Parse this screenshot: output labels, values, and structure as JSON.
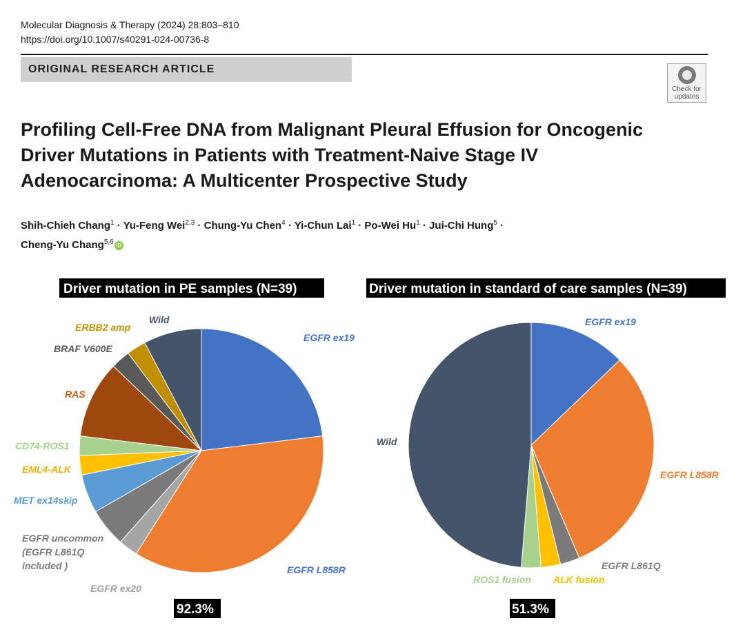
{
  "header": {
    "journal_line": "Molecular Diagnosis & Therapy (2024) 28:803–810",
    "doi": "https://doi.org/10.1007/s40291-024-00736-8",
    "article_type": "ORIGINAL RESEARCH ARTICLE",
    "check_updates": "Check for updates"
  },
  "paper": {
    "title": "Profiling Cell-Free DNA from Malignant Pleural Effusion for Oncogenic Driver Mutations in Patients with Treatment-Naive Stage IV Adenocarcinoma: A Multicenter Prospective Study",
    "authors": [
      {
        "name": "Shih-Chieh Chang",
        "aff": "1"
      },
      {
        "name": "Yu-Feng Wei",
        "aff": "2,3"
      },
      {
        "name": "Chung-Yu Chen",
        "aff": "4"
      },
      {
        "name": "Yi-Chun Lai",
        "aff": "1"
      },
      {
        "name": "Po-Wei Hu",
        "aff": "1"
      },
      {
        "name": "Jui-Chi Hung",
        "aff": "5"
      },
      {
        "name": "Cheng-Yu Chang",
        "aff": "5,6"
      }
    ],
    "orcid_icon": "orcid-icon"
  },
  "chart_data": [
    {
      "type": "pie",
      "title": "Driver mutation in PE samples (N=39)",
      "footer": "92.3%",
      "slices": [
        {
          "label": "EGFR ex19",
          "value": 9,
          "color": "#4472c4"
        },
        {
          "label": "EGFR L858R",
          "value": 14,
          "color": "#ed7d31"
        },
        {
          "label": "EGFR ex20",
          "value": 1,
          "color": "#a5a5a5"
        },
        {
          "label": "EGFR uncommon (EGFR L861Q included )",
          "value": 2,
          "color": "#7a7a7a"
        },
        {
          "label": "MET ex14skip",
          "value": 2,
          "color": "#5b9bd5"
        },
        {
          "label": "EML4-ALK",
          "value": 1,
          "color": "#ffc000"
        },
        {
          "label": "CD74-ROS1",
          "value": 1,
          "color": "#a9d18e"
        },
        {
          "label": "RAS",
          "value": 4,
          "color": "#9e480e"
        },
        {
          "label": "BRAF V600E",
          "value": 1,
          "color": "#595959"
        },
        {
          "label": "ERBB2 amp",
          "value": 1,
          "color": "#bf8f00"
        },
        {
          "label": "Wild",
          "value": 3,
          "color": "#44546a"
        }
      ]
    },
    {
      "type": "pie",
      "title": "Driver mutation in standard of care samples (N=39)",
      "footer": "51.3%",
      "slices": [
        {
          "label": "EGFR ex19",
          "value": 5,
          "color": "#4472c4"
        },
        {
          "label": "EGFR L858R",
          "value": 12,
          "color": "#ed7d31"
        },
        {
          "label": "EGFR L861Q",
          "value": 1,
          "color": "#7a7a7a"
        },
        {
          "label": "ALK fusion",
          "value": 1,
          "color": "#ffc000"
        },
        {
          "label": "ROS1 fusion",
          "value": 1,
          "color": "#a9d18e"
        },
        {
          "label": "Wild",
          "value": 19,
          "color": "#44546a"
        }
      ]
    }
  ]
}
